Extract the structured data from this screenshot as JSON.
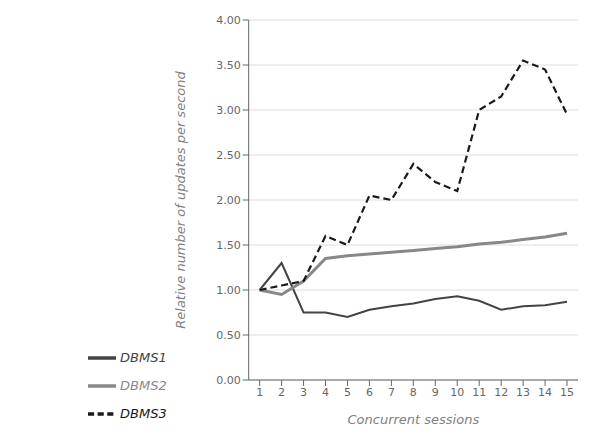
{
  "chart_data": {
    "type": "line",
    "x": [
      1,
      2,
      3,
      4,
      5,
      6,
      7,
      8,
      9,
      10,
      11,
      12,
      13,
      14,
      15
    ],
    "series": [
      {
        "name": "DBMS1",
        "color": "#444444",
        "line_style": "solid",
        "values": [
          1.0,
          1.3,
          0.75,
          0.75,
          0.7,
          0.78,
          0.82,
          0.85,
          0.9,
          0.93,
          0.88,
          0.78,
          0.82,
          0.83,
          0.87
        ]
      },
      {
        "name": "DBMS2",
        "color": "#888888",
        "line_style": "solid",
        "values": [
          1.0,
          0.95,
          1.1,
          1.35,
          1.38,
          1.4,
          1.42,
          1.44,
          1.46,
          1.48,
          1.51,
          1.53,
          1.56,
          1.59,
          1.63
        ]
      },
      {
        "name": "DBMS3",
        "color": "#1a1a1a",
        "line_style": "dashed",
        "values": [
          1.0,
          1.05,
          1.1,
          1.6,
          1.5,
          2.05,
          2.0,
          2.4,
          2.2,
          2.1,
          3.0,
          3.15,
          3.55,
          3.45,
          2.95
        ]
      }
    ],
    "xlabel": "Concurrent sessions",
    "ylabel": "Relative number of updates per second",
    "xlim": [
      0.5,
      15.5
    ],
    "xticks": [
      1,
      2,
      3,
      4,
      5,
      6,
      7,
      8,
      9,
      10,
      11,
      12,
      13,
      14,
      15
    ],
    "ylim": [
      0.0,
      4.0
    ],
    "yticks": [
      {
        "value": 0.0,
        "label": "0.00"
      },
      {
        "value": 0.5,
        "label": "0.50"
      },
      {
        "value": 1.0,
        "label": "1.00"
      },
      {
        "value": 1.5,
        "label": "1.50"
      },
      {
        "value": 2.0,
        "label": "2.00"
      },
      {
        "value": 2.5,
        "label": "2.50"
      },
      {
        "value": 3.0,
        "label": "3.00"
      },
      {
        "value": 3.5,
        "label": "3.50"
      },
      {
        "value": 4.0,
        "label": "4.00"
      }
    ],
    "grid": "y",
    "legend": "bottom"
  }
}
